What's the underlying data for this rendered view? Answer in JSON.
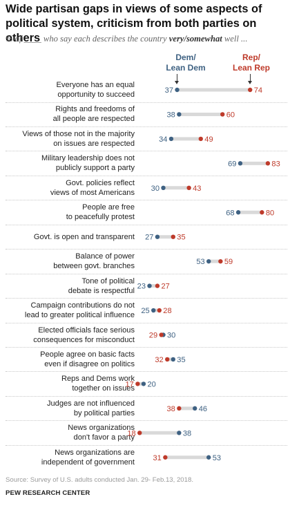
{
  "title": "Wide partisan gaps in views of some aspects of political system, criticism from both parties on others",
  "subtitle": {
    "prefix": "% of ____ who say each describes the country ",
    "emphasis": "very/somewhat",
    "suffix": " well ..."
  },
  "legend": {
    "dem": [
      "Dem/",
      "Lean Dem"
    ],
    "rep": [
      "Rep/",
      "Lean Rep"
    ]
  },
  "colors": {
    "dem": "#3e6182",
    "rep": "#be3a2a",
    "connector": "#d9d9d9"
  },
  "chart_data": {
    "type": "dot",
    "series": [
      {
        "name": "Dem/Lean Dem",
        "color": "#3e6182"
      },
      {
        "name": "Rep/Lean Rep",
        "color": "#be3a2a"
      }
    ],
    "categories": [
      {
        "label": [
          "Everyone has an equal",
          "opportunity to succeed"
        ],
        "dem": 37,
        "rep": 74
      },
      {
        "label": [
          "Rights and freedoms of",
          "all people are respected"
        ],
        "dem": 38,
        "rep": 60
      },
      {
        "label": [
          "Views of those not in the majority",
          "on issues are respected"
        ],
        "dem": 34,
        "rep": 49
      },
      {
        "label": [
          "Military leadership does not",
          "publicly support a party"
        ],
        "dem": 69,
        "rep": 83
      },
      {
        "label": [
          "Govt. policies reflect",
          "views of most Americans"
        ],
        "dem": 30,
        "rep": 43
      },
      {
        "label": [
          "People are free",
          "to peacefully protest"
        ],
        "dem": 68,
        "rep": 80
      },
      {
        "label": [
          "Govt. is open and transparent"
        ],
        "dem": 27,
        "rep": 35
      },
      {
        "label": [
          "Balance of power",
          "between govt. branches"
        ],
        "dem": 53,
        "rep": 59
      },
      {
        "label": [
          "Tone of political",
          "debate is respectful"
        ],
        "dem": 23,
        "rep": 27
      },
      {
        "label": [
          "Campaign contributions do not",
          "lead to greater political influence"
        ],
        "dem": 25,
        "rep": 28
      },
      {
        "label": [
          "Elected officials face serious",
          "consequences for misconduct"
        ],
        "dem": 30,
        "rep": 29
      },
      {
        "label": [
          "People agree on basic facts",
          "even if disagree on politics"
        ],
        "dem": 35,
        "rep": 32
      },
      {
        "label": [
          "Reps and Dems work",
          "together on issues"
        ],
        "dem": 20,
        "rep": 17
      },
      {
        "label": [
          "Judges are not influenced",
          "by political parties"
        ],
        "dem": 46,
        "rep": 38
      },
      {
        "label": [
          "News organizations",
          "don't favor a party"
        ],
        "dem": 38,
        "rep": 18
      },
      {
        "label": [
          "News organizations are",
          "independent of government"
        ],
        "dem": 53,
        "rep": 31
      }
    ]
  },
  "source": "Source: Survey of U.S. adults conducted Jan. 29- Feb.13, 2018.",
  "organization": "PEW RESEARCH CENTER"
}
